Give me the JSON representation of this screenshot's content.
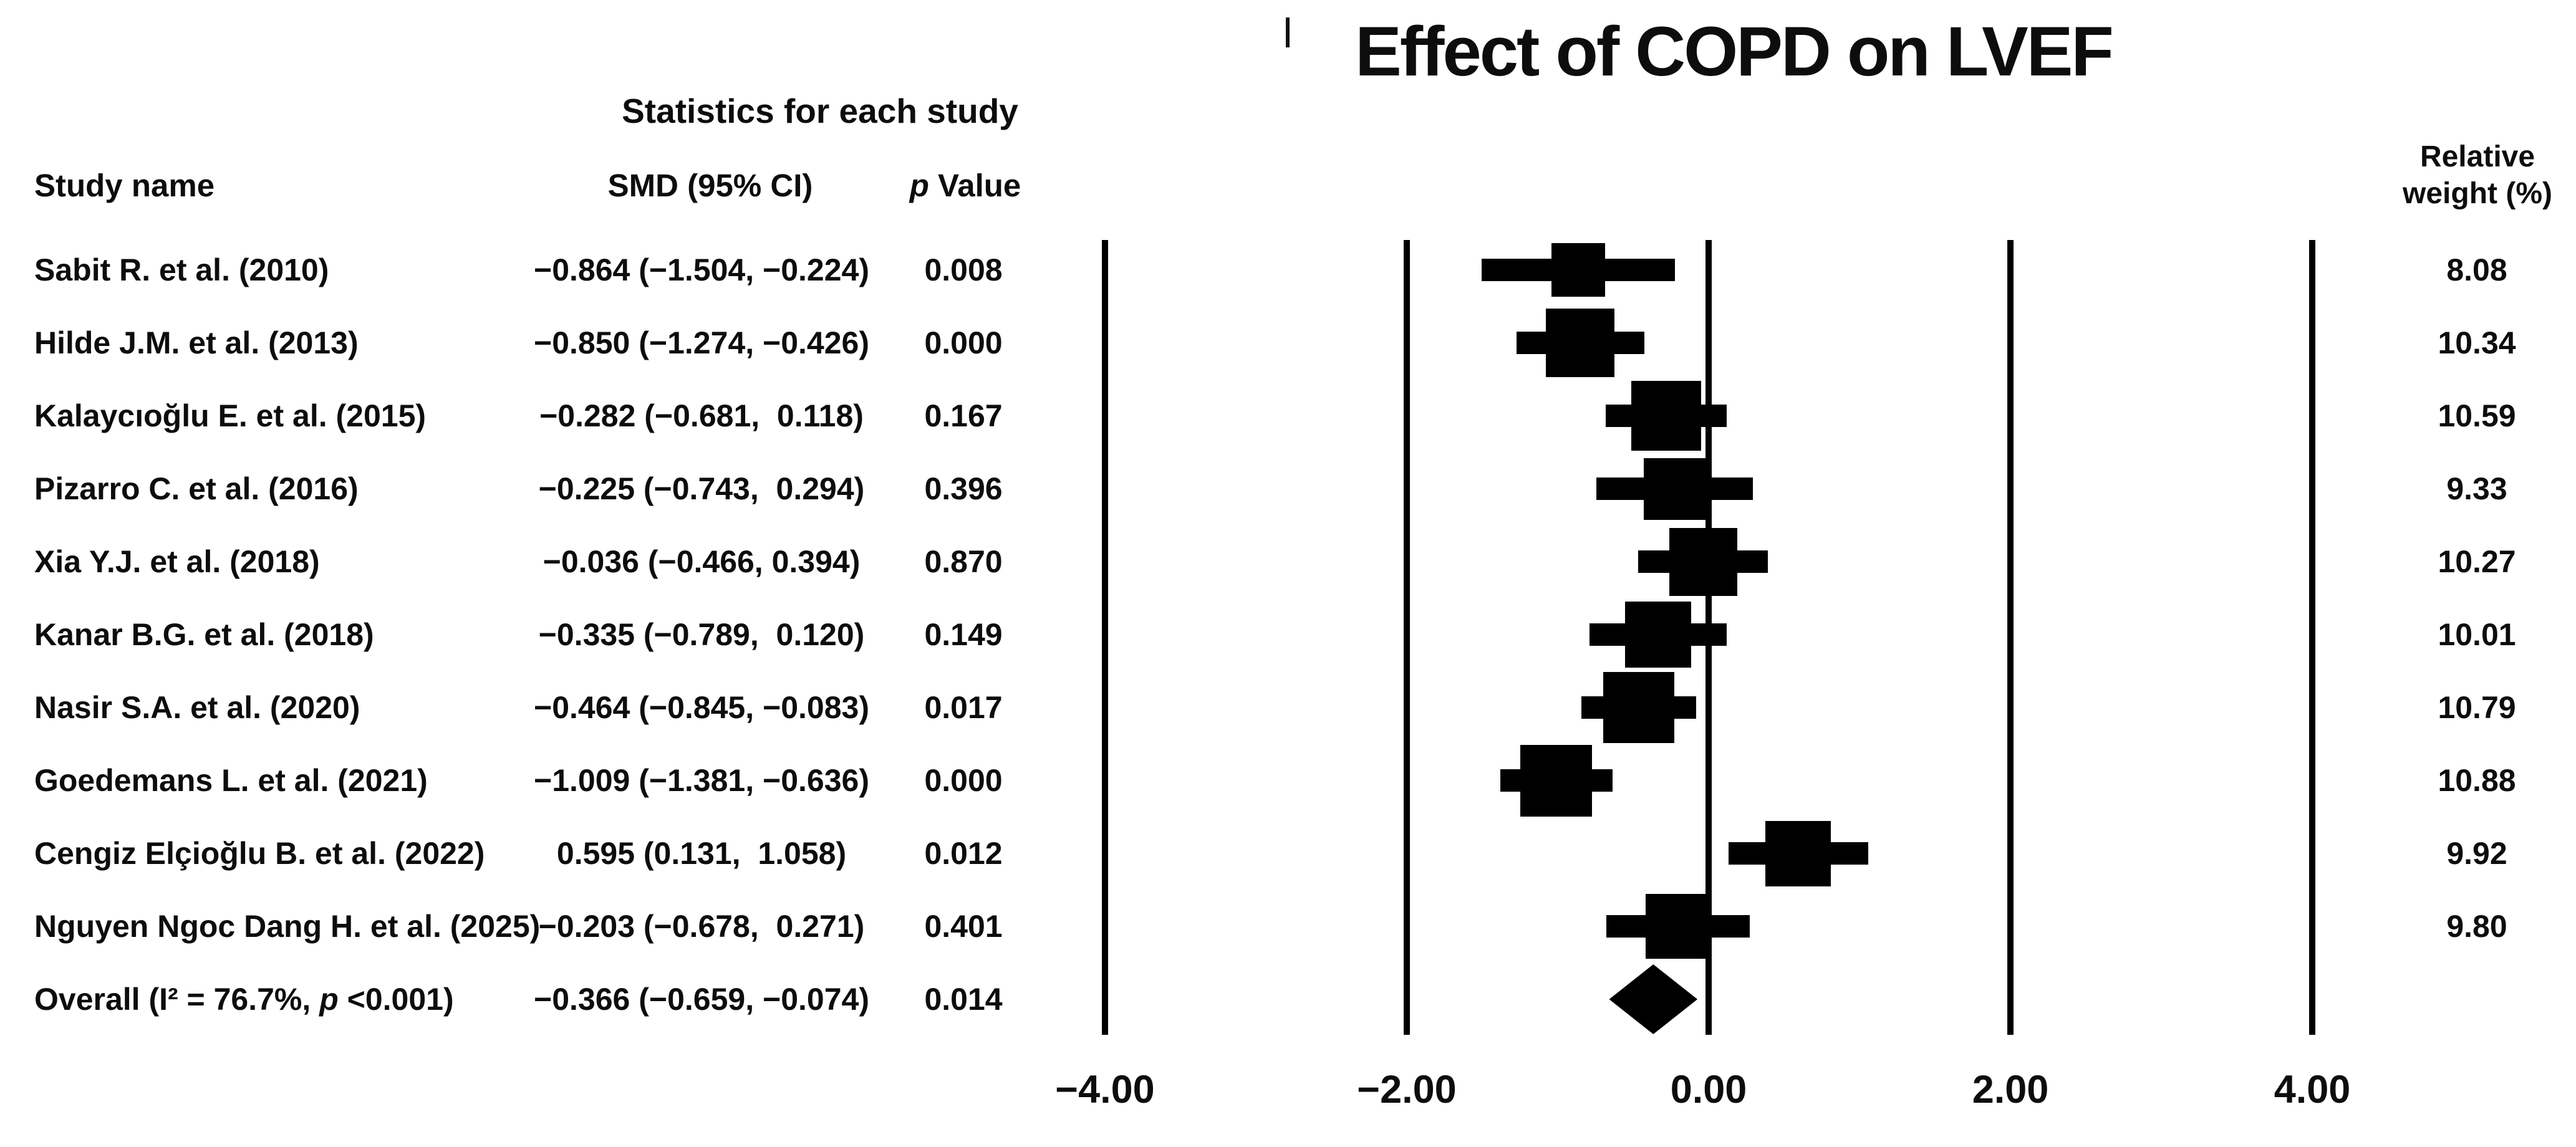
{
  "page": {
    "background": "#ffffff",
    "ink": "#0d0d0d",
    "marker_color": "#000000"
  },
  "header": {
    "title": "Effect of COPD on LVEF",
    "stats_group_label": "Statistics for each study",
    "col_study": "Study name",
    "col_smd": "SMD (95% CI)",
    "col_p_italic": "p",
    "col_p_rest": " Value",
    "col_weight_line1": "Relative",
    "col_weight_line2": "weight (%)"
  },
  "chart_data": {
    "type": "forest",
    "title": "Effect of COPD on LVEF",
    "effect_measure": "SMD",
    "xlim": [
      -4,
      4
    ],
    "grid": "vertical reference lines at each tick, plot frame open",
    "legend_position": "none",
    "x_ticks": [
      {
        "value": -4,
        "label": "−4.00"
      },
      {
        "value": -2,
        "label": "−2.00"
      },
      {
        "value": 0,
        "label": "0.00"
      },
      {
        "value": 2,
        "label": "2.00"
      },
      {
        "value": 4,
        "label": "4.00"
      }
    ],
    "studies": [
      {
        "name": "Sabit R. et al. (2010)",
        "smd": -0.864,
        "ci_low": -1.504,
        "ci_high": -0.224,
        "smd_label": "−0.864 (−1.504, −0.224)",
        "p_label": "0.008",
        "weight": 8.08,
        "weight_label": "8.08"
      },
      {
        "name": "Hilde J.M. et al. (2013)",
        "smd": -0.85,
        "ci_low": -1.274,
        "ci_high": -0.426,
        "smd_label": "−0.850 (−1.274, −0.426)",
        "p_label": "0.000",
        "weight": 10.34,
        "weight_label": "10.34"
      },
      {
        "name": "Kalaycıoğlu E. et al. (2015)",
        "smd": -0.282,
        "ci_low": -0.681,
        "ci_high": 0.118,
        "smd_label": "−0.282 (−0.681,  0.118)",
        "p_label": "0.167",
        "weight": 10.59,
        "weight_label": "10.59"
      },
      {
        "name": "Pizarro C. et al. (2016)",
        "smd": -0.225,
        "ci_low": -0.743,
        "ci_high": 0.294,
        "smd_label": "−0.225 (−0.743,  0.294)",
        "p_label": "0.396",
        "weight": 9.33,
        "weight_label": "9.33"
      },
      {
        "name": "Xia Y.J. et al. (2018)",
        "smd": -0.036,
        "ci_low": -0.466,
        "ci_high": 0.394,
        "smd_label": "−0.036 (−0.466, 0.394)",
        "p_label": "0.870",
        "weight": 10.27,
        "weight_label": "10.27"
      },
      {
        "name": "Kanar B.G. et al. (2018)",
        "smd": -0.335,
        "ci_low": -0.789,
        "ci_high": 0.12,
        "smd_label": "−0.335 (−0.789,  0.120)",
        "p_label": "0.149",
        "weight": 10.01,
        "weight_label": "10.01"
      },
      {
        "name": "Nasir S.A. et al. (2020)",
        "smd": -0.464,
        "ci_low": -0.845,
        "ci_high": -0.083,
        "smd_label": "−0.464 (−0.845, −0.083)",
        "p_label": "0.017",
        "weight": 10.79,
        "weight_label": "10.79"
      },
      {
        "name": "Goedemans L. et al. (2021)",
        "smd": -1.009,
        "ci_low": -1.381,
        "ci_high": -0.636,
        "smd_label": "−1.009 (−1.381, −0.636)",
        "p_label": "0.000",
        "weight": 10.88,
        "weight_label": "10.88"
      },
      {
        "name": "Cengiz Elçioğlu B. et al. (2022)",
        "smd": 0.595,
        "ci_low": 0.131,
        "ci_high": 1.058,
        "smd_label": "0.595 (0.131,  1.058)",
        "p_label": "0.012",
        "weight": 9.92,
        "weight_label": "9.92"
      },
      {
        "name": "Nguyen Ngoc Dang H. et al. (2025)",
        "smd": -0.203,
        "ci_low": -0.678,
        "ci_high": 0.271,
        "smd_label": "−0.203 (−0.678,  0.271)",
        "p_label": "0.401",
        "weight": 9.8,
        "weight_label": "9.80"
      }
    ],
    "overall": {
      "name_prefix": "Overall (I² = 76.7%, ",
      "name_italic": "p",
      "name_suffix": " <0.001)",
      "smd": -0.366,
      "ci_low": -0.659,
      "ci_high": -0.074,
      "smd_label": "−0.366 (−0.659, −0.074)",
      "p_label": "0.014",
      "weight_label": ""
    }
  }
}
